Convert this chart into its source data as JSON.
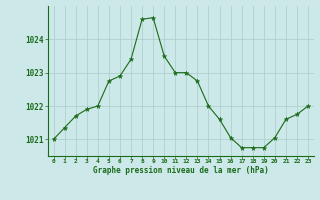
{
  "x": [
    0,
    1,
    2,
    3,
    4,
    5,
    6,
    7,
    8,
    9,
    10,
    11,
    12,
    13,
    14,
    15,
    16,
    17,
    18,
    19,
    20,
    21,
    22,
    23
  ],
  "y": [
    1021.0,
    1021.35,
    1021.7,
    1021.9,
    1022.0,
    1022.75,
    1022.9,
    1023.4,
    1024.6,
    1024.65,
    1023.5,
    1023.0,
    1023.0,
    1022.75,
    1022.0,
    1021.6,
    1021.05,
    1020.75,
    1020.75,
    1020.75,
    1021.05,
    1021.6,
    1021.75,
    1022.0
  ],
  "line_color": "#1a6b1a",
  "marker": "*",
  "marker_color": "#1a6b1a",
  "marker_size": 3.5,
  "background_color": "#cce8e8",
  "grid_color": "#aacccc",
  "xlabel": "Graphe pression niveau de la mer (hPa)",
  "xlabel_color": "#1a6b1a",
  "tick_color": "#1a6b1a",
  "spine_color": "#1a6b1a",
  "ylim": [
    1020.5,
    1025.0
  ],
  "yticks": [
    1021,
    1022,
    1023,
    1024
  ],
  "xlim": [
    -0.5,
    23.5
  ],
  "xticks": [
    0,
    1,
    2,
    3,
    4,
    5,
    6,
    7,
    8,
    9,
    10,
    11,
    12,
    13,
    14,
    15,
    16,
    17,
    18,
    19,
    20,
    21,
    22,
    23
  ]
}
